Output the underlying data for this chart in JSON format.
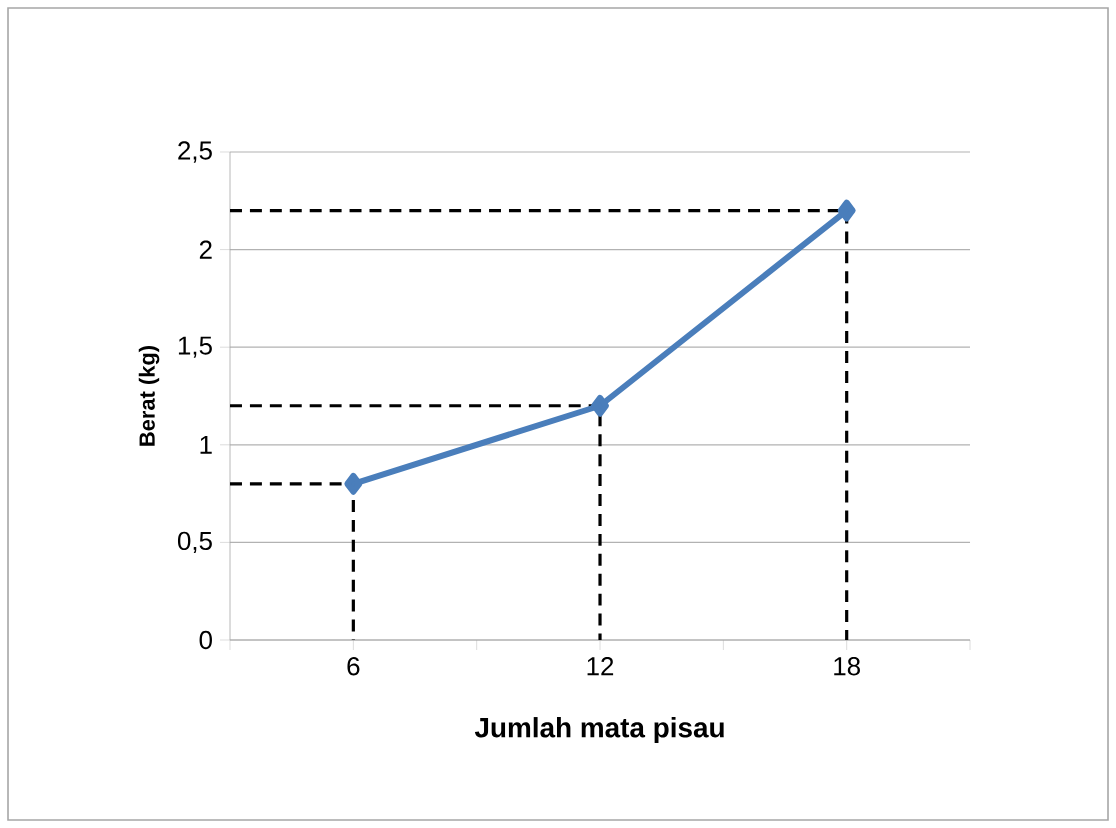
{
  "chart_data": {
    "type": "line",
    "xlabel": "Jumlah mata pisau",
    "ylabel": "Berat (kg)",
    "xlim": [
      3,
      21
    ],
    "xticks": [
      {
        "value": 3,
        "label": null
      },
      6,
      {
        "value": 9,
        "label": null
      },
      12,
      {
        "value": 15,
        "label": null
      },
      18,
      {
        "value": 21,
        "label": null
      }
    ],
    "ylim": [
      0,
      2.5
    ],
    "yticks": [
      0,
      {
        "value": 0.5,
        "label": "0,5"
      },
      1,
      {
        "value": 1.5,
        "label": "1,5"
      },
      2,
      {
        "value": 2.5,
        "label": "2,5"
      }
    ],
    "grid": "y",
    "series": [
      {
        "color": "#000000",
        "line_style": "dashed",
        "marker": "none",
        "x": [
          3,
          6,
          6
        ],
        "values": [
          0.8,
          0.8,
          0
        ]
      },
      {
        "color": "#000000",
        "line_style": "dashed",
        "marker": "none",
        "x": [
          3,
          12,
          12
        ],
        "values": [
          1.2,
          1.2,
          0
        ]
      },
      {
        "color": "#000000",
        "line_style": "dashed",
        "marker": "none",
        "x": [
          3,
          18,
          18
        ],
        "values": [
          2.2,
          2.2,
          0
        ]
      },
      {
        "color": "#4a7ebb",
        "line_style": "solid",
        "marker": "diamond",
        "x": [
          6,
          12,
          18
        ],
        "values": [
          0.8,
          1.2,
          2.2
        ]
      }
    ]
  }
}
